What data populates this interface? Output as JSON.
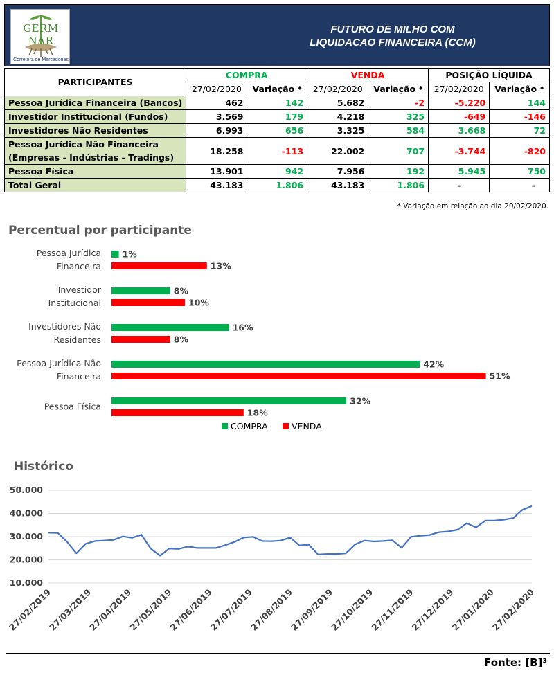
{
  "header": {
    "logo_text": "GERM NAR",
    "logo_sub": "Corretora de Mercadorias",
    "title_line1": "FUTURO DE MILHO COM",
    "title_line2": "LIQUIDACAO FINANCEIRA (CCM)"
  },
  "table": {
    "participants_label": "PARTICIPANTES",
    "groups": [
      "COMPRA",
      "VENDA",
      "POSIÇÃO LÍQUIDA"
    ],
    "subheaders": [
      "27/02/2020",
      "Variação *",
      "27/02/2020",
      "Variação *",
      "27/02/2020",
      "Variação *"
    ],
    "rows": [
      {
        "name": "Pessoa Jurídica Financeira (Bancos)",
        "compra": "462",
        "compra_var": "142",
        "venda": "5.682",
        "venda_var": "-2",
        "liq": "-5.220",
        "liq_var": "144"
      },
      {
        "name": "Investidor Institucional (Fundos)",
        "compra": "3.569",
        "compra_var": "179",
        "venda": "4.218",
        "venda_var": "325",
        "liq": "-649",
        "liq_var": "-146"
      },
      {
        "name": "Investidores Não Residentes",
        "compra": "6.993",
        "compra_var": "656",
        "venda": "3.325",
        "venda_var": "584",
        "liq": "3.668",
        "liq_var": "72"
      },
      {
        "name_line1": "Pessoa Jurídica Não Financeira",
        "name_line2": "(Empresas - Indústrias - Tradings)",
        "compra": "18.258",
        "compra_var": "-113",
        "venda": "22.002",
        "venda_var": "707",
        "liq": "-3.744",
        "liq_var": "-820"
      },
      {
        "name": "Pessoa Física",
        "compra": "13.901",
        "compra_var": "942",
        "venda": "7.956",
        "venda_var": "192",
        "liq": "5.945",
        "liq_var": "750"
      },
      {
        "name": "Total Geral",
        "compra": "43.183",
        "compra_var": "1.806",
        "venda": "43.183",
        "venda_var": "1.806",
        "liq": "-",
        "liq_var": "-"
      }
    ],
    "footnote": "* Variação em relação ao dia 20/02/2020."
  },
  "colors": {
    "compra": "#00b050",
    "venda": "#ff0000",
    "header_bg": "#203864",
    "name_bg": "#d7e4bc",
    "line": "#4472c4"
  },
  "chart_data": [
    {
      "type": "bar",
      "orientation": "horizontal",
      "title": "Percentual por participante",
      "categories": [
        [
          "Pessoa Jurídica",
          "Financeira"
        ],
        [
          "Investidor",
          "Institucional"
        ],
        [
          "Investidores Não",
          "Residentes"
        ],
        [
          "Pessoa Jurídica Não",
          "Financeira"
        ],
        [
          "Pessoa Física"
        ]
      ],
      "series": [
        {
          "name": "COMPRA",
          "values": [
            1,
            8,
            16,
            42,
            32
          ],
          "labels": [
            "1%",
            "8%",
            "16%",
            "42%",
            "32%"
          ]
        },
        {
          "name": "VENDA",
          "values": [
            13,
            10,
            8,
            51,
            18
          ],
          "labels": [
            "13%",
            "10%",
            "8%",
            "51%",
            "18%"
          ]
        }
      ],
      "legend": "bottom"
    },
    {
      "type": "line",
      "title": "Histórico",
      "ylim": [
        10000,
        50000
      ],
      "yticks": [
        "10.000",
        "20.000",
        "30.000",
        "40.000",
        "50.000"
      ],
      "ytick_values": [
        10000,
        20000,
        30000,
        40000,
        50000
      ],
      "xticks": [
        "27/02/2019",
        "27/03/2019",
        "27/04/2019",
        "27/05/2019",
        "27/06/2019",
        "27/07/2019",
        "27/08/2019",
        "27/09/2019",
        "27/10/2019",
        "27/11/2019",
        "27/12/2019",
        "27/01/2020",
        "27/02/2020"
      ],
      "grid": true,
      "series": [
        {
          "values": [
            31700,
            31600,
            27800,
            22800,
            26900,
            28100,
            28300,
            28600,
            30100,
            29500,
            30800,
            24800,
            21800,
            24900,
            24700,
            25700,
            25100,
            25100,
            25100,
            26300,
            27700,
            29600,
            29900,
            28100,
            28000,
            28300,
            29600,
            26200,
            26500,
            22300,
            22500,
            22500,
            22800,
            26700,
            28300,
            27900,
            28100,
            28400,
            25200,
            29900,
            30400,
            30700,
            31900,
            32200,
            33000,
            35800,
            34000,
            36900,
            36900,
            37300,
            38000,
            41600,
            43200
          ]
        }
      ]
    }
  ],
  "source": "Fonte: [B]³"
}
